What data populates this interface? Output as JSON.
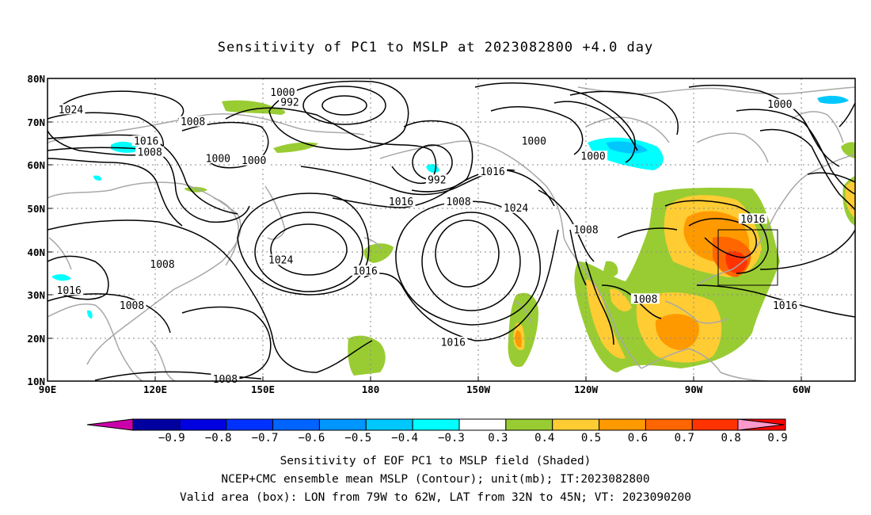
{
  "title": "Sensitivity of PC1 to MSLP at 2023082800 +4.0 day",
  "map": {
    "lat_labels": [
      "80N",
      "70N",
      "60N",
      "50N",
      "40N",
      "30N",
      "20N",
      "10N"
    ],
    "lon_labels": [
      "90E",
      "120E",
      "150E",
      "180",
      "150W",
      "120W",
      "90W",
      "60W"
    ],
    "contour_labels": [
      {
        "text": "1000",
        "lon": 155.5,
        "lat": 76.8
      },
      {
        "text": "992",
        "lon": 157.5,
        "lat": 74.5
      },
      {
        "text": "1024",
        "lon": 96.5,
        "lat": 72.8
      },
      {
        "text": "1016",
        "lon": 117.5,
        "lat": 65.5
      },
      {
        "text": "1008",
        "lon": 118.5,
        "lat": 63.0
      },
      {
        "text": "1000",
        "lon": 137.5,
        "lat": 61.5
      },
      {
        "text": "1000",
        "lon": 147.5,
        "lat": 61.0
      },
      {
        "text": "992",
        "lon": -161.5,
        "lat": 56.5
      },
      {
        "text": "1000",
        "lon": -134.5,
        "lat": 65.5
      },
      {
        "text": "1016",
        "lon": -146.0,
        "lat": 58.5
      },
      {
        "text": "1008",
        "lon": -155.5,
        "lat": 51.5
      },
      {
        "text": "1016",
        "lon": -171.5,
        "lat": 51.5
      },
      {
        "text": "1024",
        "lon": -139.5,
        "lat": 50.0
      },
      {
        "text": "1000",
        "lon": -118.0,
        "lat": 62.0
      },
      {
        "text": "1000",
        "lon": -66.0,
        "lat": 74.0
      },
      {
        "text": "1008",
        "lon": -120.0,
        "lat": 45.0
      },
      {
        "text": "1016",
        "lon": -73.5,
        "lat": 47.5
      },
      {
        "text": "1008",
        "lon": -103.5,
        "lat": 29.0
      },
      {
        "text": "1016",
        "lon": -64.5,
        "lat": 27.5
      },
      {
        "text": "1008",
        "lon": 130.5,
        "lat": 70.0
      },
      {
        "text": "1008",
        "lon": 122.0,
        "lat": 37.0
      },
      {
        "text": "1024",
        "lon": 155.0,
        "lat": 38.0
      },
      {
        "text": "1016",
        "lon": -181.5,
        "lat": 35.5
      },
      {
        "text": "1016",
        "lon": 96.0,
        "lat": 31.0
      },
      {
        "text": "1008",
        "lon": 113.5,
        "lat": 27.5
      },
      {
        "text": "1016",
        "lon": -157.0,
        "lat": 19.0
      },
      {
        "text": "1008",
        "lon": 139.5,
        "lat": 10.5
      }
    ],
    "box_label": "",
    "colors": {
      "contour": "#000000",
      "coast": "#a8a8a8",
      "grid": "#8a8a8a",
      "box": "#000000"
    }
  },
  "colorbar": {
    "labels": [
      "-0.9",
      "-0.8",
      "-0.7",
      "-0.6",
      "-0.5",
      "-0.4",
      "-0.3",
      "0.3",
      "0.4",
      "0.5",
      "0.6",
      "0.7",
      "0.8",
      "0.9"
    ],
    "colors": [
      "#0000a0",
      "#0000e0",
      "#0032ff",
      "#0064ff",
      "#0096ff",
      "#00c8ff",
      "#00ffff",
      "#ffffff",
      "#99cc33",
      "#ffcc33",
      "#ff9900",
      "#ff6600",
      "#ff3300",
      "#ff0000"
    ],
    "left_tip": "#cc00aa",
    "right_tip": "#ff99cc"
  },
  "captions": {
    "line1": "Sensitivity of EOF PC1 to MSLP field (Shaded)",
    "line2": "NCEP+CMC ensemble mean MSLP (Contour); unit(mb); IT:2023082800",
    "line3": "Valid area (box): LON from 79W to 62W, LAT from 32N to 45N; VT: 2023090200"
  }
}
